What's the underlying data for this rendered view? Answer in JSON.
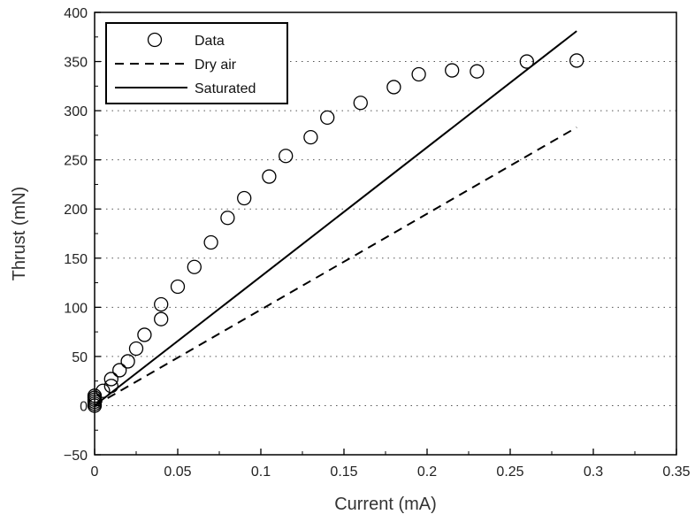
{
  "chart_data": {
    "type": "scatter",
    "xlabel": "Current (mA)",
    "ylabel": "Thrust (mN)",
    "xlim": [
      0,
      0.35
    ],
    "ylim": [
      -50,
      400
    ],
    "x_ticks": [
      0,
      0.05,
      0.1,
      0.15,
      0.2,
      0.25,
      0.3,
      0.35
    ],
    "x_tick_labels": [
      "0",
      "0.05",
      "0.1",
      "0.15",
      "0.2",
      "0.25",
      "0.3",
      "0.35"
    ],
    "y_ticks": [
      -50,
      0,
      50,
      100,
      150,
      200,
      250,
      300,
      350,
      400
    ],
    "y_tick_labels": [
      "−50",
      "0",
      "50",
      "100",
      "150",
      "200",
      "250",
      "300",
      "350",
      "400"
    ],
    "grid": "horizontal dotted",
    "legend_position": "top-left",
    "series": [
      {
        "name": "Data",
        "style": "open-circle",
        "color": "#000000",
        "x": [
          0,
          0,
          0,
          0,
          0,
          0,
          0.005,
          0.01,
          0.01,
          0.015,
          0.02,
          0.025,
          0.03,
          0.04,
          0.04,
          0.05,
          0.06,
          0.07,
          0.08,
          0.09,
          0.105,
          0.115,
          0.13,
          0.14,
          0.16,
          0.18,
          0.195,
          0.215,
          0.23,
          0.26,
          0.29
        ],
        "y": [
          0,
          2,
          4,
          6,
          8,
          10,
          15,
          20,
          27,
          36,
          45,
          58,
          72,
          88,
          103,
          121,
          141,
          166,
          191,
          211,
          233,
          254,
          273,
          293,
          308,
          324,
          337,
          341,
          340,
          350,
          351
        ]
      },
      {
        "name": "Dry air",
        "style": "dashed-line",
        "color": "#000000",
        "x": [
          0,
          0.29
        ],
        "y": [
          0,
          283
        ]
      },
      {
        "name": "Saturated",
        "style": "solid-line",
        "color": "#000000",
        "x": [
          0,
          0.29
        ],
        "y": [
          0,
          381
        ]
      }
    ]
  }
}
